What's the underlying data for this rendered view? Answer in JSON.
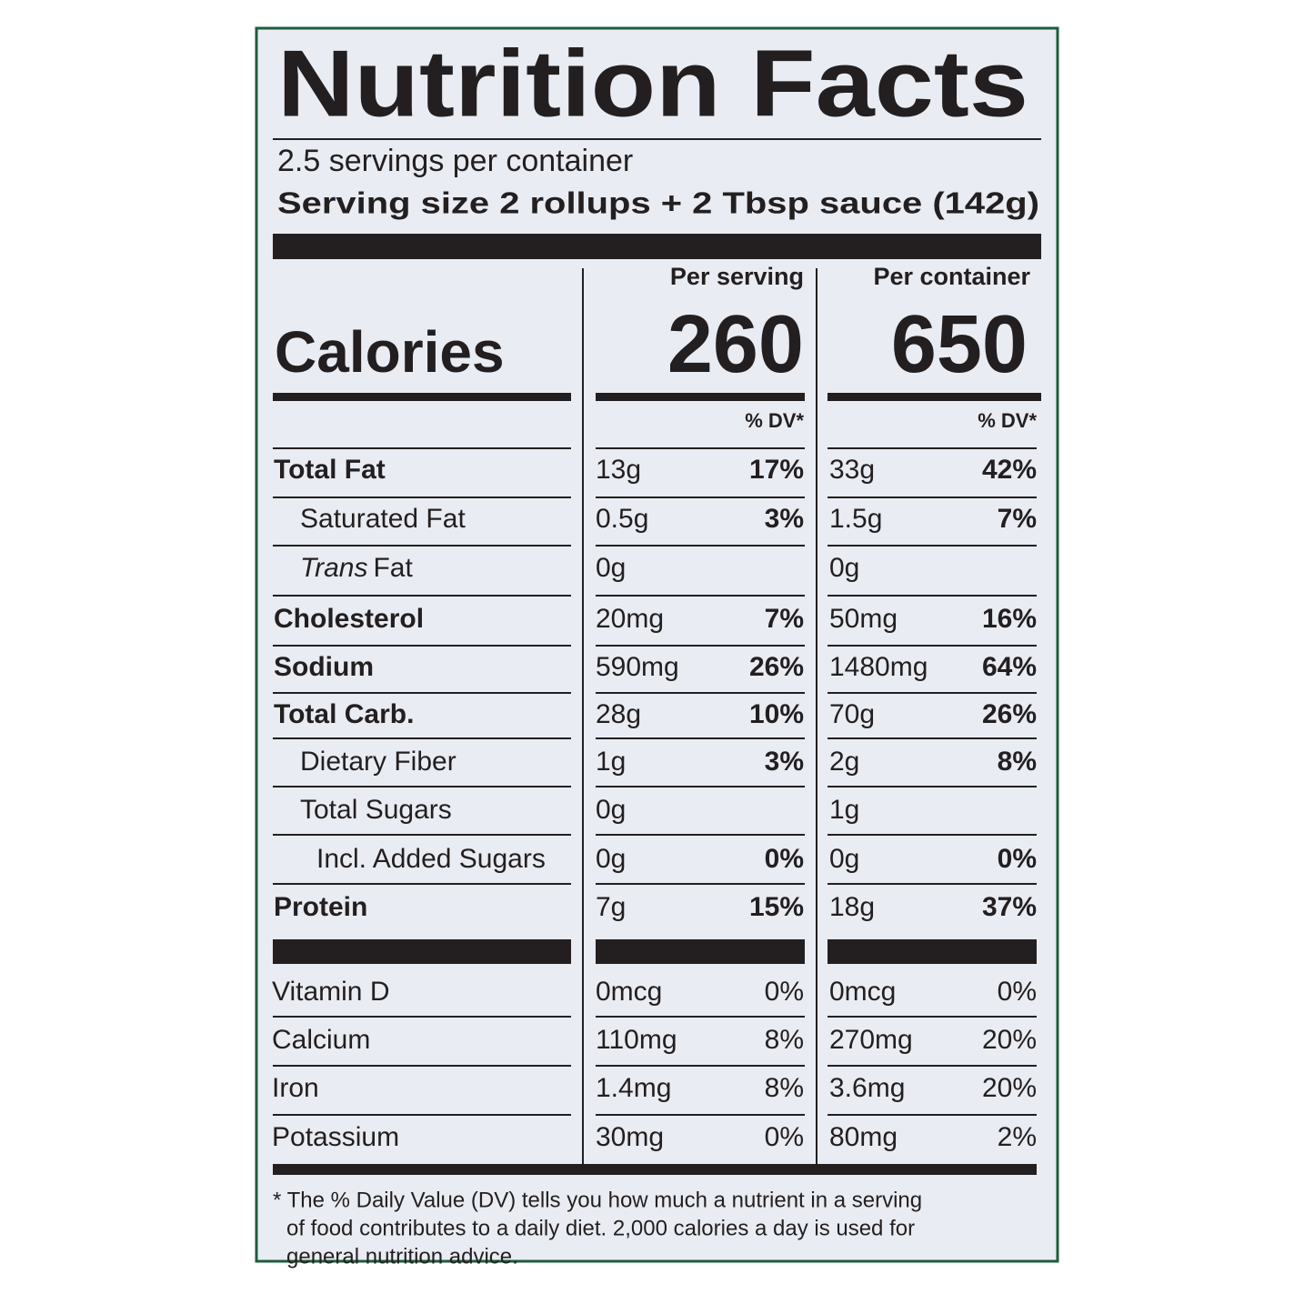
{
  "title": "Nutrition Facts",
  "servings": "2.5 servings per container",
  "serving_size": "Serving size 2 rollups + 2 Tbsp sauce (142g)",
  "columns": [
    "Per serving",
    "Per container"
  ],
  "calories": {
    "label": "Calories",
    "values": [
      "260",
      "650"
    ]
  },
  "dv_headers": [
    "% DV*",
    "% DV*"
  ],
  "rows": [
    {
      "label": "Total Fat",
      "bold": true,
      "indent": 0,
      "serving": [
        "13g",
        "17%"
      ],
      "container": [
        "33g",
        "42%"
      ]
    },
    {
      "label": "Saturated Fat",
      "bold": false,
      "indent": 1,
      "serving": [
        "0.5g",
        "3%"
      ],
      "container": [
        "1.5g",
        "7%"
      ]
    },
    {
      "label_italic": "Trans",
      "label": "Fat",
      "bold": false,
      "indent": 1,
      "serving": [
        "0g"
      ],
      "container": [
        "0g"
      ]
    },
    {
      "label": "Cholesterol",
      "bold": true,
      "indent": 0,
      "serving": [
        "20mg",
        "7%"
      ],
      "container": [
        "50mg",
        "16%"
      ]
    },
    {
      "label": "Sodium",
      "bold": true,
      "indent": 0,
      "serving": [
        "590mg",
        "26%"
      ],
      "container": [
        "1480mg",
        "64%"
      ]
    },
    {
      "label": "Total Carb.",
      "bold": true,
      "indent": 0,
      "serving": [
        "28g",
        "10%"
      ],
      "container": [
        "70g",
        "26%"
      ]
    },
    {
      "label": "Dietary Fiber",
      "bold": false,
      "indent": 1,
      "serving": [
        "1g",
        "3%"
      ],
      "container": [
        "2g",
        "8%"
      ]
    },
    {
      "label": "Total Sugars",
      "bold": false,
      "indent": 1,
      "serving": [
        "0g"
      ],
      "container": [
        "1g"
      ]
    },
    {
      "label": "Incl. Added Sugars",
      "bold": false,
      "indent": 2,
      "serving": [
        "0g",
        "0%"
      ],
      "container": [
        "0g",
        "0%"
      ]
    },
    {
      "label": "Protein",
      "bold": true,
      "indent": 0,
      "serving": [
        "7g",
        "15%"
      ],
      "container": [
        "18g",
        "37%"
      ]
    }
  ],
  "vitamins": [
    {
      "label": "Vitamin D",
      "serving": [
        "0mcg",
        "0%"
      ],
      "container": [
        "0mcg",
        "0%"
      ]
    },
    {
      "label": "Calcium",
      "serving": [
        "110mg",
        "8%"
      ],
      "container": [
        "270mg",
        "20%"
      ]
    },
    {
      "label": "Iron",
      "serving": [
        "1.4mg",
        "8%"
      ],
      "container": [
        "3.6mg",
        "20%"
      ]
    },
    {
      "label": "Potassium",
      "serving": [
        "30mg",
        "0%"
      ],
      "container": [
        "80mg",
        "2%"
      ]
    }
  ],
  "footnote": [
    "* The % Daily Value (DV) tells you how much a nutrient in a serving",
    "of food contributes to a daily diet. 2,000 calories a day is used for",
    "general nutrition advice."
  ]
}
